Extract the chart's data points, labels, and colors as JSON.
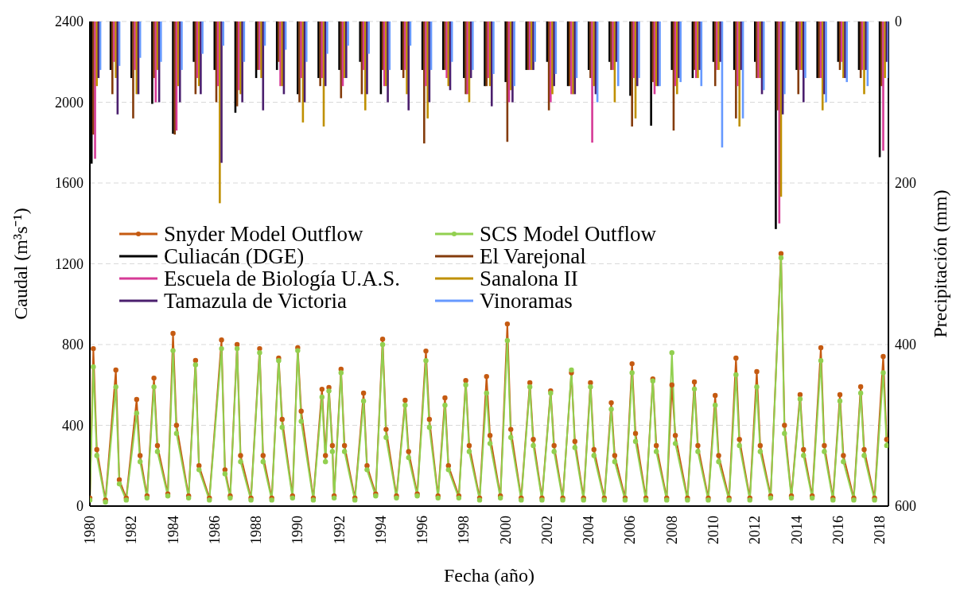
{
  "chart_data": {
    "type": "line",
    "xlabel": "Fecha (año)",
    "ylabel": "Caudal (m³s⁻¹)",
    "y2label": "Precipitación (mm)",
    "x": [
      "1980-01",
      "1980-03",
      "1980-05",
      "1980-10",
      "1981-04",
      "1981-06",
      "1981-10",
      "1982-04",
      "1982-06",
      "1982-10",
      "1983-02",
      "1983-04",
      "1983-10",
      "1984-01",
      "1984-03",
      "1984-10",
      "1985-02",
      "1985-04",
      "1985-10",
      "1986-05",
      "1986-07",
      "1986-10",
      "1987-02",
      "1987-04",
      "1987-10",
      "1988-03",
      "1988-05",
      "1988-10",
      "1989-02",
      "1989-04",
      "1989-10",
      "1990-01",
      "1990-03",
      "1990-10",
      "1991-03",
      "1991-05",
      "1991-07",
      "1991-09",
      "1991-10",
      "1992-02",
      "1992-04",
      "1992-10",
      "1993-03",
      "1993-05",
      "1993-10",
      "1994-02",
      "1994-04",
      "1994-10",
      "1995-03",
      "1995-05",
      "1995-10",
      "1996-03",
      "1996-05",
      "1996-10",
      "1997-02",
      "1997-04",
      "1997-10",
      "1998-02",
      "1998-04",
      "1998-10",
      "1999-02",
      "1999-04",
      "1999-10",
      "2000-02",
      "2000-04",
      "2000-10",
      "2001-03",
      "2001-05",
      "2001-10",
      "2002-03",
      "2002-05",
      "2002-10",
      "2003-03",
      "2003-05",
      "2003-10",
      "2004-02",
      "2004-04",
      "2004-10",
      "2005-02",
      "2005-04",
      "2005-10",
      "2006-02",
      "2006-04",
      "2006-10",
      "2007-02",
      "2007-04",
      "2007-10",
      "2008-01",
      "2008-03",
      "2008-10",
      "2009-02",
      "2009-04",
      "2009-10",
      "2010-02",
      "2010-04",
      "2010-10",
      "2011-02",
      "2011-04",
      "2011-10",
      "2012-02",
      "2012-04",
      "2012-10",
      "2013-04",
      "2013-06",
      "2013-10",
      "2014-03",
      "2014-05",
      "2014-10",
      "2015-03",
      "2015-05",
      "2015-10",
      "2016-02",
      "2016-04",
      "2016-10",
      "2017-02",
      "2017-04",
      "2017-10",
      "2018-03",
      "2018-05"
    ],
    "series": [
      {
        "name": "Snyder Model Outflow",
        "color": "#c55a11",
        "values": [
          40,
          780,
          280,
          30,
          674,
          130,
          40,
          528,
          250,
          50,
          634,
          300,
          60,
          855,
          400,
          50,
          721,
          200,
          40,
          823,
          180,
          50,
          800,
          250,
          40,
          780,
          250,
          40,
          733,
          430,
          50,
          784,
          470,
          40,
          579,
          250,
          587,
          300,
          50,
          678,
          300,
          40,
          560,
          200,
          60,
          827,
          380,
          50,
          524,
          270,
          60,
          768,
          430,
          50,
          536,
          200,
          50,
          622,
          300,
          40,
          642,
          350,
          50,
          902,
          380,
          40,
          611,
          330,
          40,
          571,
          300,
          40,
          660,
          320,
          40,
          611,
          280,
          40,
          512,
          250,
          40,
          705,
          360,
          40,
          630,
          300,
          40,
          600,
          350,
          40,
          615,
          300,
          40,
          548,
          250,
          40,
          733,
          330,
          40,
          666,
          300,
          50,
          1250,
          400,
          50,
          552,
          280,
          50,
          784,
          300,
          40,
          552,
          250,
          40,
          591,
          280,
          40,
          741,
          330
        ]
      },
      {
        "name": "SCS Model Outflow",
        "color": "#92d050",
        "values": [
          30,
          690,
          250,
          20,
          590,
          110,
          30,
          460,
          220,
          40,
          590,
          270,
          50,
          770,
          360,
          40,
          700,
          180,
          30,
          780,
          160,
          40,
          780,
          220,
          30,
          760,
          220,
          30,
          720,
          390,
          40,
          770,
          420,
          30,
          540,
          220,
          570,
          270,
          40,
          660,
          270,
          30,
          520,
          180,
          50,
          800,
          340,
          40,
          500,
          240,
          50,
          720,
          390,
          40,
          500,
          180,
          40,
          600,
          270,
          30,
          560,
          310,
          40,
          820,
          340,
          30,
          590,
          300,
          30,
          560,
          270,
          30,
          674,
          290,
          30,
          590,
          250,
          30,
          480,
          220,
          30,
          660,
          320,
          30,
          620,
          270,
          30,
          760,
          310,
          30,
          580,
          270,
          30,
          500,
          220,
          30,
          650,
          300,
          30,
          590,
          270,
          40,
          1230,
          360,
          40,
          530,
          250,
          40,
          720,
          270,
          30,
          520,
          220,
          30,
          560,
          250,
          30,
          660,
          300
        ]
      },
      {
        "name": "Culiacán (DGE)",
        "type": "bar",
        "axis": "y2",
        "color": "#000000",
        "x": [
          "1980-02",
          "1981-01",
          "1982-01",
          "1983-01",
          "1984-01",
          "1985-01",
          "1986-01",
          "1987-01",
          "1988-01",
          "1989-01",
          "1990-01",
          "1991-01",
          "1992-01",
          "1993-01",
          "1994-01",
          "1995-01",
          "1996-01",
          "1997-01",
          "1998-01",
          "1999-01",
          "2000-01",
          "2001-01",
          "2002-01",
          "2003-01",
          "2004-01",
          "2005-01",
          "2006-01",
          "2007-01",
          "2008-01",
          "2009-01",
          "2010-01",
          "2011-01",
          "2012-01",
          "2013-01",
          "2014-01",
          "2015-01",
          "2016-01",
          "2017-01",
          "2018-01"
        ],
        "values": [
          176,
          60,
          70,
          102,
          139,
          50,
          60,
          113,
          70,
          60,
          90,
          70,
          60,
          50,
          90,
          60,
          60,
          60,
          70,
          80,
          75,
          60,
          50,
          80,
          60,
          50,
          92,
          129,
          60,
          70,
          50,
          60,
          50,
          257,
          60,
          70,
          50,
          60,
          168
        ]
      },
      {
        "name": "El Varejonal",
        "type": "bar",
        "axis": "y2",
        "color": "#843c0c",
        "x": [
          "1980-03",
          "1981-02",
          "1982-02",
          "1983-02",
          "1984-02",
          "1985-02",
          "1986-02",
          "1987-02",
          "1988-02",
          "1989-02",
          "1990-02",
          "1991-02",
          "1992-02",
          "1993-02",
          "1994-02",
          "1995-02",
          "1996-02",
          "1997-02",
          "1998-02",
          "1999-02",
          "2000-02",
          "2001-02",
          "2002-02",
          "2003-02",
          "2004-02",
          "2005-02",
          "2006-02",
          "2007-02",
          "2008-02",
          "2009-02",
          "2010-02",
          "2011-02",
          "2012-02",
          "2013-02",
          "2014-02",
          "2015-02",
          "2016-02",
          "2017-02",
          "2018-02"
        ],
        "values": [
          140,
          90,
          120,
          70,
          140,
          90,
          100,
          105,
          60,
          50,
          100,
          80,
          95,
          90,
          60,
          70,
          151,
          60,
          90,
          80,
          149,
          60,
          110,
          80,
          70,
          60,
          130,
          75,
          135,
          60,
          80,
          120,
          70,
          110,
          90,
          70,
          60,
          70,
          80
        ]
      },
      {
        "name": "Escuela de Biología U.A.S.",
        "type": "bar",
        "axis": "y2",
        "color": "#d63a96",
        "x": [
          "1980-04",
          "1981-03",
          "1982-03",
          "1983-03",
          "1984-03",
          "1985-03",
          "1986-03",
          "1987-03",
          "1988-03",
          "1989-03",
          "1990-03",
          "1991-03",
          "1992-03",
          "1993-03",
          "1994-03",
          "1995-03",
          "1996-03",
          "1997-03",
          "1998-03",
          "1999-03",
          "2000-03",
          "2001-03",
          "2002-03",
          "2003-03",
          "2004-03",
          "2005-03",
          "2006-03",
          "2007-03",
          "2008-03",
          "2009-03",
          "2010-03",
          "2011-03",
          "2012-03",
          "2013-03",
          "2014-03",
          "2015-03",
          "2016-03",
          "2017-03",
          "2018-03"
        ],
        "values": [
          170,
          50,
          60,
          100,
          135,
          70,
          80,
          85,
          60,
          80,
          70,
          70,
          80,
          60,
          80,
          60,
          80,
          70,
          90,
          70,
          100,
          60,
          100,
          90,
          150,
          60,
          70,
          90,
          80,
          70,
          60,
          80,
          70,
          250,
          60,
          70,
          50,
          60,
          160
        ]
      },
      {
        "name": "Sanalona II",
        "type": "bar",
        "axis": "y2",
        "color": "#bf9000",
        "x": [
          "1980-05",
          "1981-04",
          "1982-04",
          "1983-04",
          "1984-04",
          "1985-04",
          "1986-04",
          "1987-04",
          "1988-04",
          "1989-04",
          "1990-04",
          "1991-04",
          "1992-04",
          "1993-04",
          "1994-04",
          "1995-04",
          "1996-04",
          "1997-04",
          "1998-04",
          "1999-04",
          "2000-04",
          "2001-04",
          "2002-04",
          "2003-04",
          "2004-04",
          "2005-04",
          "2006-04",
          "2007-04",
          "2008-04",
          "2009-04",
          "2010-04",
          "2011-04",
          "2012-04",
          "2013-04",
          "2014-04",
          "2015-04",
          "2016-04",
          "2017-04",
          "2018-04"
        ],
        "values": [
          80,
          70,
          90,
          60,
          80,
          80,
          225,
          90,
          70,
          80,
          125,
          130,
          70,
          110,
          80,
          90,
          120,
          80,
          100,
          80,
          85,
          60,
          90,
          90,
          80,
          100,
          120,
          80,
          90,
          70,
          60,
          130,
          70,
          217,
          60,
          110,
          70,
          90,
          70
        ]
      },
      {
        "name": "Tamazula de Victoria",
        "type": "bar",
        "axis": "y2",
        "color": "#4b1f6e",
        "x": [
          "1980-06",
          "1981-05",
          "1982-05",
          "1983-05",
          "1984-05",
          "1985-05",
          "1986-05",
          "1987-05",
          "1988-05",
          "1989-05",
          "1990-05",
          "1991-05",
          "1992-05",
          "1993-05",
          "1994-05",
          "1995-05",
          "1996-05",
          "1997-05",
          "1998-05",
          "1999-05",
          "2000-05",
          "2001-05",
          "2002-05",
          "2003-05",
          "2004-05",
          "2005-05",
          "2006-05",
          "2007-05",
          "2008-05",
          "2009-05",
          "2010-05",
          "2011-05",
          "2012-05",
          "2013-05",
          "2014-05",
          "2015-05",
          "2016-05",
          "2017-05",
          "2018-05"
        ],
        "values": [
          70,
          115,
          90,
          100,
          100,
          90,
          175,
          100,
          110,
          90,
          100,
          80,
          70,
          90,
          100,
          110,
          100,
          85,
          70,
          105,
          100,
          60,
          80,
          90,
          90,
          50,
          80,
          80,
          70,
          60,
          50,
          60,
          90,
          115,
          100,
          90,
          70,
          60,
          50
        ]
      },
      {
        "name": "Vinoramas",
        "type": "bar",
        "axis": "y2",
        "color": "#6699ff",
        "x": [
          "1980-07",
          "1981-06",
          "1982-06",
          "1983-06",
          "1984-06",
          "1985-06",
          "1986-06",
          "1987-06",
          "1988-06",
          "1989-06",
          "1990-06",
          "1991-06",
          "1992-06",
          "1993-06",
          "1994-06",
          "1995-06",
          "1996-06",
          "1997-06",
          "1998-06",
          "1999-06",
          "2000-06",
          "2001-06",
          "2002-06",
          "2003-06",
          "2004-06",
          "2005-06",
          "2006-06",
          "2007-06",
          "2008-06",
          "2009-06",
          "2010-06",
          "2011-06",
          "2012-06",
          "2013-06",
          "2014-06",
          "2015-06",
          "2016-06",
          "2017-06",
          "2018-06"
        ],
        "values": [
          60,
          55,
          45,
          50,
          60,
          40,
          30,
          50,
          30,
          35,
          50,
          40,
          30,
          40,
          60,
          30,
          60,
          50,
          60,
          65,
          80,
          50,
          65,
          70,
          100,
          80,
          70,
          80,
          75,
          80,
          156,
          120,
          85,
          90,
          70,
          100,
          75,
          80,
          70
        ]
      }
    ],
    "xlim": [
      "1980",
      "2018-06"
    ],
    "xticks": [
      "1980",
      "1982",
      "1984",
      "1986",
      "1988",
      "1990",
      "1992",
      "1994",
      "1996",
      "1998",
      "2000",
      "2002",
      "2004",
      "2006",
      "2008",
      "2010",
      "2012",
      "2014",
      "2016",
      "2018"
    ],
    "ylim": [
      0,
      2400
    ],
    "yticks": [
      0,
      400,
      800,
      1200,
      1600,
      2000,
      2400
    ],
    "y2lim": [
      600,
      0
    ],
    "y2ticks": [
      0,
      200,
      400,
      600
    ],
    "grid": "y",
    "legend": "left",
    "marker": "circle"
  }
}
